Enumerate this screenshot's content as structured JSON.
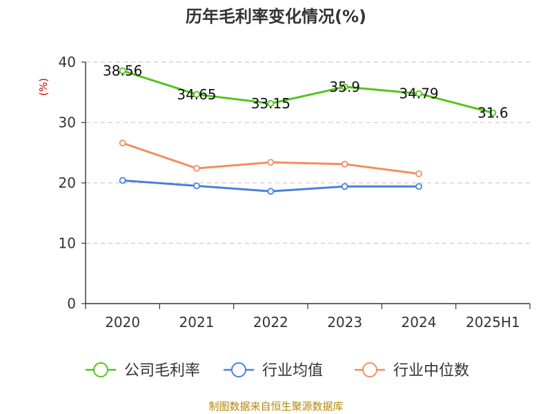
{
  "chart_data": {
    "type": "line",
    "title": "历年毛利率变化情况(%)",
    "ylabel": "(%)",
    "xlabel": "",
    "categories": [
      "2020",
      "2021",
      "2022",
      "2023",
      "2024",
      "2025H1"
    ],
    "ylim": [
      0,
      40
    ],
    "yticks": [
      0,
      10,
      20,
      30,
      40
    ],
    "grid": true,
    "legend_position": "bottom",
    "series": [
      {
        "name": "公司毛利率",
        "color": "#52c41a",
        "values": [
          38.56,
          34.65,
          33.15,
          35.9,
          34.79,
          31.6
        ],
        "labels": [
          "38.56",
          "34.65",
          "33.15",
          "35.9",
          "34.79",
          "31.6"
        ]
      },
      {
        "name": "行业均值",
        "color": "#4a7fdb",
        "values": [
          20.4,
          19.5,
          18.6,
          19.4,
          19.4,
          null
        ]
      },
      {
        "name": "行业中位数",
        "color": "#f58d5a",
        "values": [
          26.6,
          22.4,
          23.4,
          23.1,
          21.5,
          null
        ]
      }
    ]
  },
  "source_text": "制图数据来自恒生聚源数据库"
}
